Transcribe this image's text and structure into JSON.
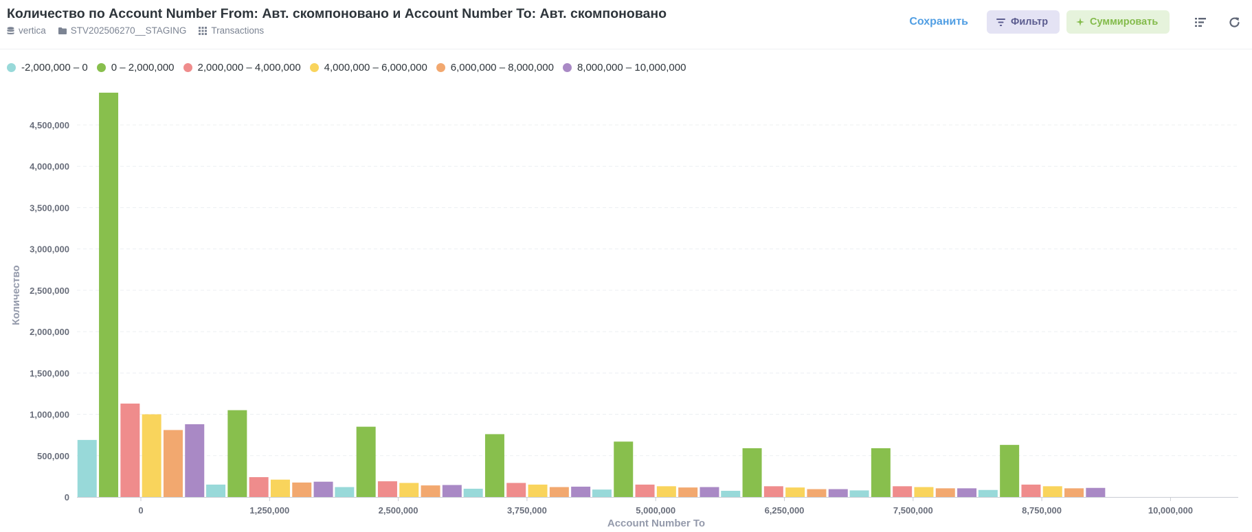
{
  "header": {
    "title": "Количество по Account Number From: Авт. скомпоновано и Account Number To: Авт. скомпоновано",
    "breadcrumbs": [
      {
        "label": "vertica",
        "icon": "database-icon"
      },
      {
        "label": "STV202506270__STAGING",
        "icon": "folder-icon"
      },
      {
        "label": "Transactions",
        "icon": "grid-icon"
      }
    ]
  },
  "actions": {
    "save_label": "Сохранить",
    "filter_label": "Фильтр",
    "summarize_label": "Суммировать",
    "colors": {
      "save": "#509ee3",
      "filter_bg": "#e4e3f4",
      "filter_fg": "#5b5c8f",
      "sum_bg": "#e6f3dc",
      "sum_fg": "#84bb4c"
    }
  },
  "chart_data": {
    "type": "bar",
    "xlabel": "Account Number To",
    "ylabel": "Количество",
    "ylim": [
      0,
      4800000
    ],
    "yticks": [
      0,
      500000,
      1000000,
      1500000,
      2000000,
      2500000,
      3000000,
      3500000,
      4000000,
      4500000
    ],
    "ytick_labels": [
      "0",
      "500,000",
      "1,000,000",
      "1,500,000",
      "2,000,000",
      "2,500,000",
      "3,000,000",
      "3,500,000",
      "4,000,000",
      "4,500,000"
    ],
    "categories": [
      0,
      1250000,
      2500000,
      3750000,
      5000000,
      6250000,
      7500000,
      8750000,
      10000000
    ],
    "category_labels": [
      "0",
      "1,250,000",
      "2,500,000",
      "3,750,000",
      "5,000,000",
      "6,250,000",
      "7,500,000",
      "8,750,000",
      "10,000,000"
    ],
    "grid": true,
    "legend_position": "top-left",
    "series": [
      {
        "name": "-2,000,000 – 0",
        "color": "#98d9d9",
        "values": [
          690000,
          150000,
          120000,
          100000,
          90000,
          75000,
          80000,
          85000,
          0
        ]
      },
      {
        "name": "0 – 2,000,000",
        "color": "#88bf4d",
        "values": [
          4890000,
          1050000,
          850000,
          760000,
          670000,
          590000,
          590000,
          630000,
          0
        ]
      },
      {
        "name": "2,000,000 – 4,000,000",
        "color": "#ef8c8c",
        "values": [
          1130000,
          240000,
          190000,
          170000,
          150000,
          130000,
          130000,
          150000,
          0
        ]
      },
      {
        "name": "4,000,000 – 6,000,000",
        "color": "#f9d45c",
        "values": [
          1000000,
          210000,
          170000,
          150000,
          130000,
          115000,
          120000,
          130000,
          0
        ]
      },
      {
        "name": "6,000,000 – 8,000,000",
        "color": "#f2a86f",
        "values": [
          810000,
          175000,
          140000,
          120000,
          115000,
          95000,
          105000,
          105000,
          0
        ]
      },
      {
        "name": "8,000,000 – 10,000,000",
        "color": "#a989c5",
        "values": [
          880000,
          185000,
          145000,
          125000,
          120000,
          95000,
          105000,
          110000,
          0
        ]
      }
    ]
  }
}
